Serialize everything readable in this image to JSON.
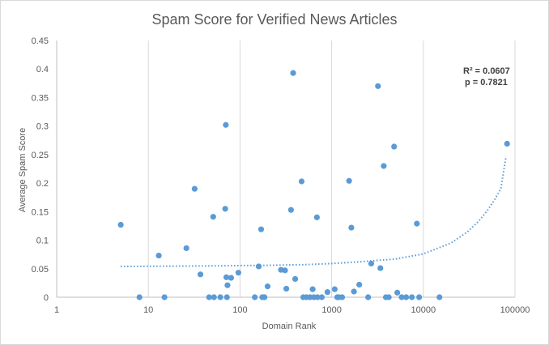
{
  "chart_data": {
    "type": "scatter",
    "title": "Spam Score for Verified News Articles",
    "xlabel": "Domain Rank",
    "ylabel": "Average Spam Score",
    "x_scale": "log",
    "xlim": [
      1,
      100000
    ],
    "ylim": [
      0,
      0.45
    ],
    "x_ticks": [
      "1",
      "10",
      "100",
      "1000",
      "10000",
      "100000"
    ],
    "y_ticks": [
      "0",
      "0.05",
      "0.1",
      "0.15",
      "0.2",
      "0.25",
      "0.3",
      "0.35",
      "0.4",
      "0.45"
    ],
    "grid": "vertical",
    "marker_color": "#5b9bd5",
    "trendline": {
      "style": "dotted",
      "color": "#5b9bd5",
      "x_range": [
        5,
        80000
      ],
      "points": [
        [
          5,
          0.054
        ],
        [
          50,
          0.055
        ],
        [
          200,
          0.056
        ],
        [
          500,
          0.057
        ],
        [
          1000,
          0.059
        ],
        [
          2000,
          0.062
        ],
        [
          5000,
          0.067
        ],
        [
          10000,
          0.076
        ],
        [
          20000,
          0.095
        ],
        [
          30000,
          0.114
        ],
        [
          40000,
          0.133
        ],
        [
          50000,
          0.152
        ],
        [
          60000,
          0.171
        ],
        [
          70000,
          0.19
        ],
        [
          80000,
          0.247
        ]
      ]
    },
    "annotations": [
      "R² = 0.0607",
      "p = 0.7821"
    ],
    "points": [
      [
        5,
        0.127
      ],
      [
        8,
        0
      ],
      [
        13,
        0.073
      ],
      [
        15,
        0
      ],
      [
        26,
        0.086
      ],
      [
        32,
        0.19
      ],
      [
        37,
        0.04
      ],
      [
        46,
        0
      ],
      [
        51,
        0.141
      ],
      [
        52,
        0
      ],
      [
        61,
        0
      ],
      [
        69,
        0.155
      ],
      [
        70,
        0.302
      ],
      [
        71,
        0.035
      ],
      [
        72,
        0
      ],
      [
        73,
        0.021
      ],
      [
        80,
        0.034
      ],
      [
        96,
        0.043
      ],
      [
        145,
        0
      ],
      [
        160,
        0.054
      ],
      [
        170,
        0.119
      ],
      [
        175,
        0
      ],
      [
        185,
        0
      ],
      [
        200,
        0.019
      ],
      [
        280,
        0.048
      ],
      [
        310,
        0.047
      ],
      [
        320,
        0.015
      ],
      [
        360,
        0.153
      ],
      [
        380,
        0.393
      ],
      [
        400,
        0.032
      ],
      [
        470,
        0.203
      ],
      [
        490,
        0
      ],
      [
        530,
        0
      ],
      [
        580,
        0
      ],
      [
        620,
        0.014
      ],
      [
        640,
        0
      ],
      [
        690,
        0.14
      ],
      [
        700,
        0
      ],
      [
        780,
        0
      ],
      [
        900,
        0.009
      ],
      [
        1080,
        0.014
      ],
      [
        1150,
        0
      ],
      [
        1200,
        0
      ],
      [
        1300,
        0
      ],
      [
        1550,
        0.204
      ],
      [
        1640,
        0.122
      ],
      [
        1750,
        0.01
      ],
      [
        2000,
        0.022
      ],
      [
        2500,
        0
      ],
      [
        2700,
        0.059
      ],
      [
        3200,
        0.37
      ],
      [
        3400,
        0.051
      ],
      [
        3700,
        0.23
      ],
      [
        3900,
        0
      ],
      [
        4200,
        0
      ],
      [
        4800,
        0.264
      ],
      [
        5200,
        0.008
      ],
      [
        5800,
        0
      ],
      [
        6500,
        0
      ],
      [
        7500,
        0
      ],
      [
        8500,
        0.129
      ],
      [
        9000,
        0
      ],
      [
        15000,
        0
      ],
      [
        82000,
        0.269
      ]
    ]
  }
}
